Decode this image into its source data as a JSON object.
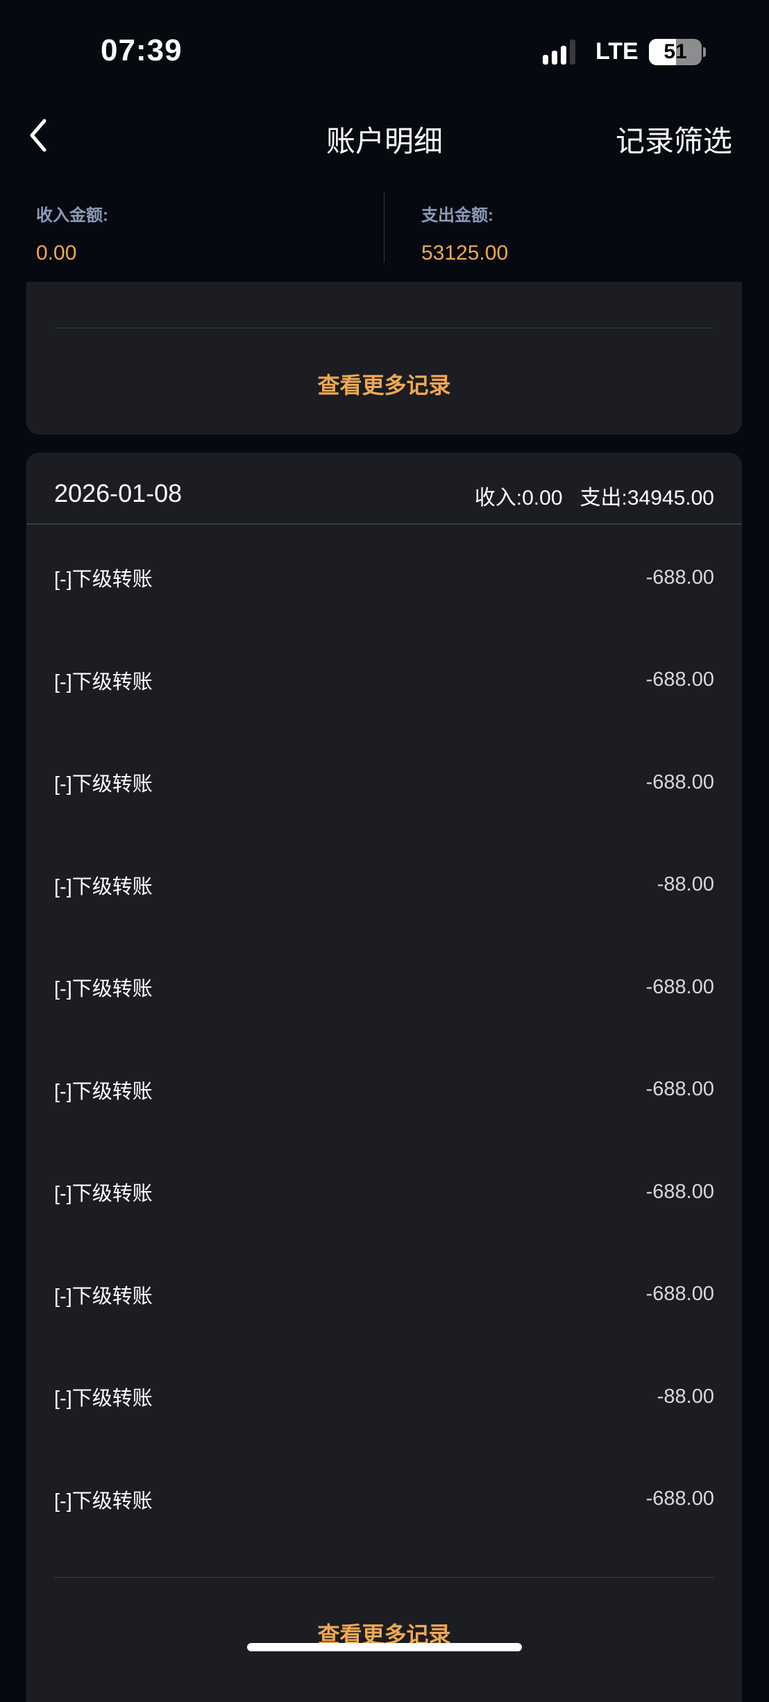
{
  "status_bar": {
    "time": "07:39",
    "network": "LTE",
    "battery": "51",
    "battery_level": 51
  },
  "nav": {
    "title": "账户明细",
    "filter_label": "记录筛选",
    "back_icon": "chevron-left-icon"
  },
  "summary": {
    "income_label": "收入金额:",
    "income_value": "0.00",
    "expense_label": "支出金额:",
    "expense_value": "53125.00"
  },
  "previous_group": {
    "more_label": "查看更多记录"
  },
  "group": {
    "date": "2026-01-08",
    "income": "收入:0.00",
    "expense": "支出:34945.00",
    "rows": [
      {
        "label": "[-]下级转账",
        "amount": "-688.00"
      },
      {
        "label": "[-]下级转账",
        "amount": "-688.00"
      },
      {
        "label": "[-]下级转账",
        "amount": "-688.00"
      },
      {
        "label": "[-]下级转账",
        "amount": "-88.00"
      },
      {
        "label": "[-]下级转账",
        "amount": "-688.00"
      },
      {
        "label": "[-]下级转账",
        "amount": "-688.00"
      },
      {
        "label": "[-]下级转账",
        "amount": "-688.00"
      },
      {
        "label": "[-]下级转账",
        "amount": "-688.00"
      },
      {
        "label": "[-]下级转账",
        "amount": "-88.00"
      },
      {
        "label": "[-]下级转账",
        "amount": "-688.00"
      }
    ],
    "more_label": "查看更多记录"
  },
  "colors": {
    "accent": "#f0a851",
    "background": "#060910",
    "card": "#1b1d22",
    "label": "#8c9ab8"
  }
}
